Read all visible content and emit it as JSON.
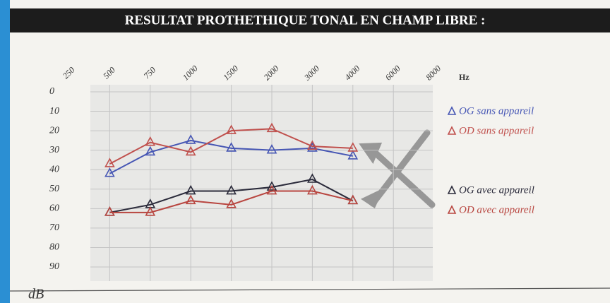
{
  "chart_data": {
    "type": "line",
    "title": "RESULTAT PROTHETHIQUE TONAL EN CHAMP LIBRE :",
    "x_label": "Hz",
    "y_label": "dB",
    "categories": [
      "250",
      "500",
      "750",
      "1000",
      "1500",
      "2000",
      "3000",
      "4000",
      "6000",
      "8000"
    ],
    "series": [
      {
        "name": "OG sans appareil",
        "color": "#4656b4",
        "values": [
          null,
          42,
          31,
          25,
          29,
          30,
          29,
          33,
          null,
          null
        ]
      },
      {
        "name": "OD sans appareil",
        "color": "#c0504d",
        "values": [
          null,
          37,
          26,
          31,
          20,
          19,
          28,
          29,
          null,
          null
        ]
      },
      {
        "name": "OG avec appareil",
        "color": "#2a2a3a",
        "values": [
          null,
          62,
          58,
          51,
          51,
          49,
          45,
          56,
          null,
          null
        ]
      },
      {
        "name": "OD avec appareil",
        "color": "#b8453f",
        "values": [
          null,
          62,
          62,
          56,
          58,
          51,
          51,
          56,
          null,
          null
        ]
      }
    ],
    "ylim": [
      0,
      90
    ],
    "yticks": [
      0,
      10,
      20,
      30,
      40,
      50,
      60,
      70,
      80,
      90
    ],
    "y_inverted": true,
    "grid": true
  }
}
